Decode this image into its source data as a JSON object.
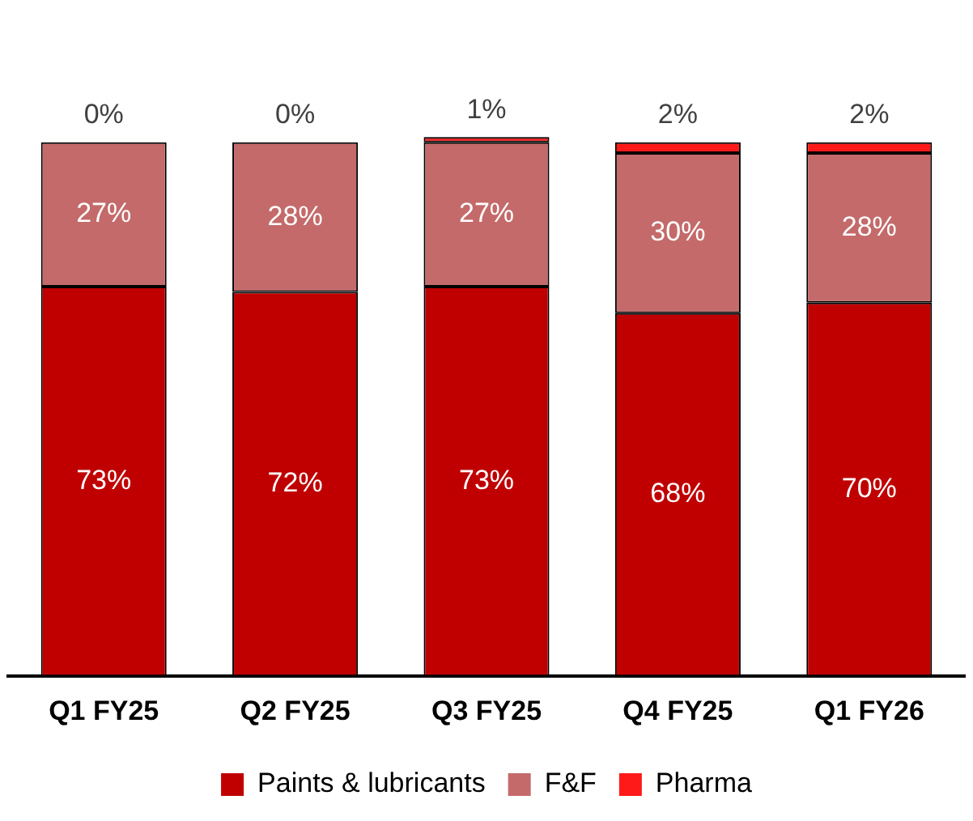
{
  "chart_data": {
    "type": "bar",
    "stacked": true,
    "legend": "bottom",
    "grid": false,
    "categories": [
      "Q1 FY25",
      "Q2 FY25",
      "Q3 FY25",
      "Q4 FY25",
      "Q1 FY26"
    ],
    "series": [
      {
        "name": "Paints & lubricants",
        "color": "#c00000",
        "values": [
          73,
          72,
          73,
          68,
          70
        ],
        "value_labels": [
          "73%",
          "72%",
          "73%",
          "68%",
          "70%"
        ]
      },
      {
        "name": "F&F",
        "color": "#c46a6a",
        "values": [
          27,
          28,
          27,
          30,
          28
        ],
        "value_labels": [
          "27%",
          "28%",
          "27%",
          "30%",
          "28%"
        ]
      },
      {
        "name": "Pharma",
        "color": "#ff1a1a",
        "values": [
          0,
          0,
          1,
          2,
          2
        ],
        "value_labels": [
          "0%",
          "0%",
          "1%",
          "2%",
          "2%"
        ]
      }
    ]
  }
}
